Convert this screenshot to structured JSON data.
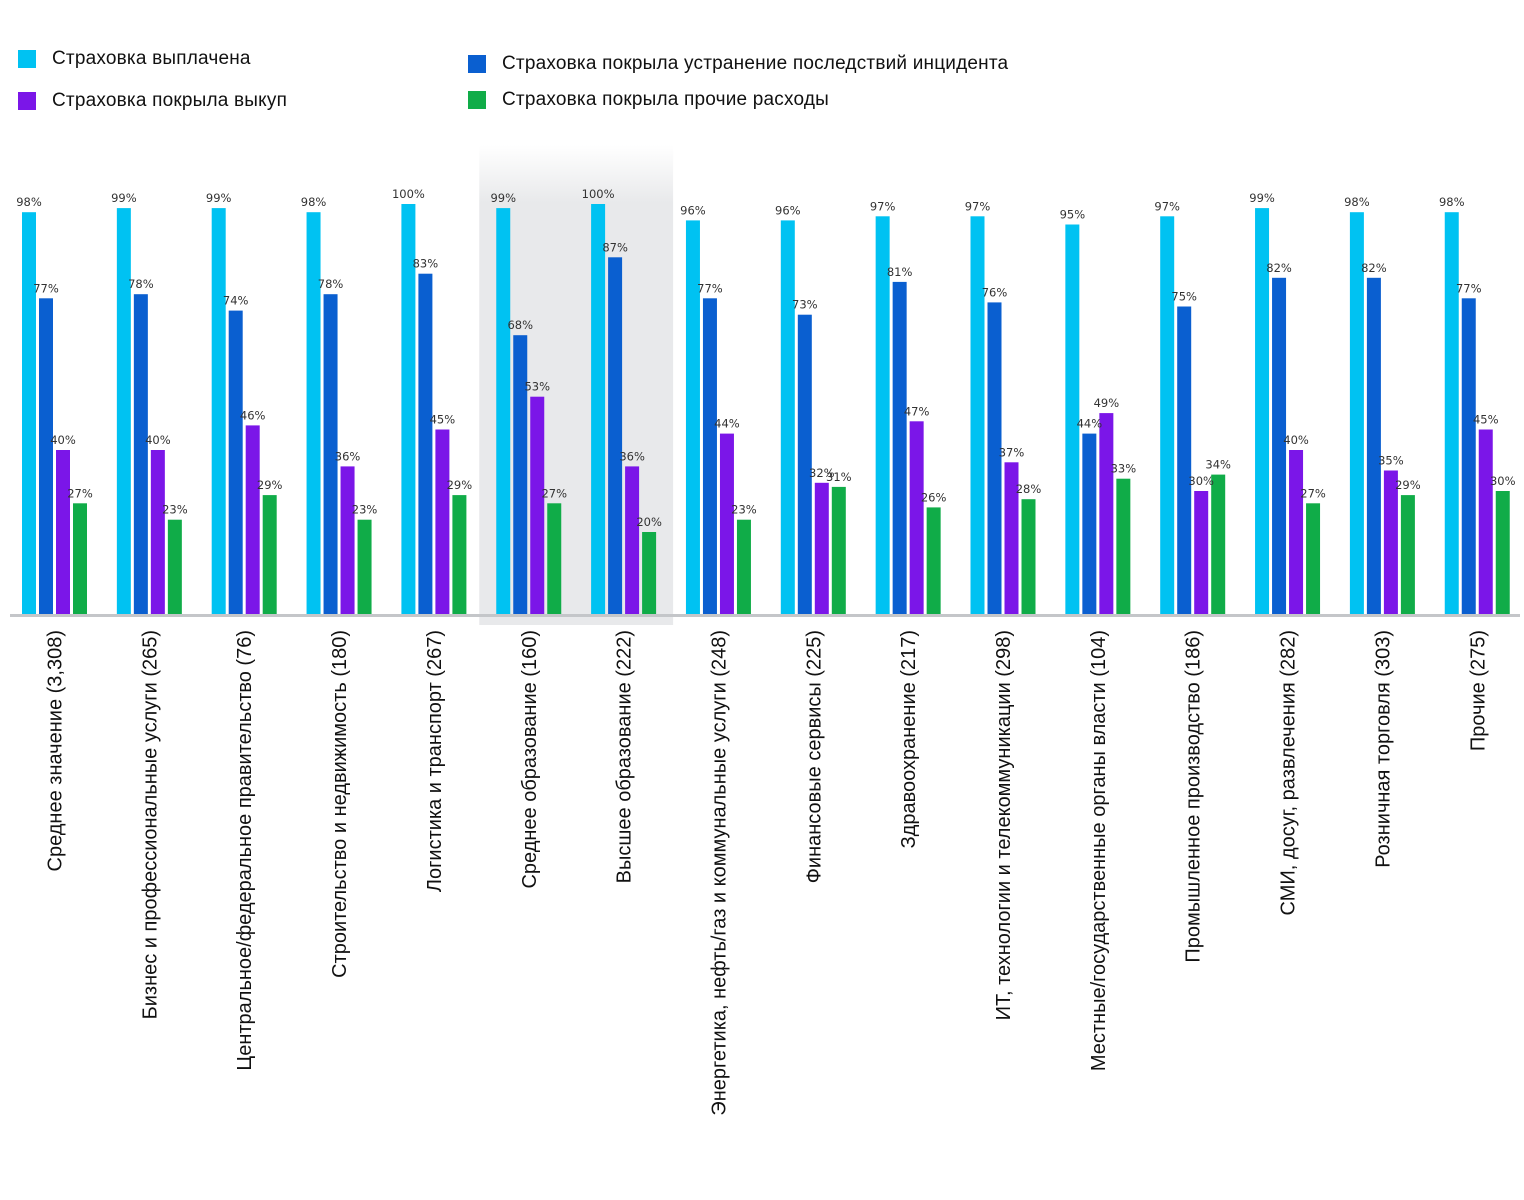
{
  "chart_data": {
    "type": "bar",
    "ylim": [
      0,
      100
    ],
    "legend_position": "top-left",
    "highlighted_categories": [
      5,
      6
    ],
    "categories": [
      "Среднее значение (3,308)",
      "Бизнес и профессиональные услуги (265)",
      "Центральное/федеральное правительство (76)",
      "Строительство и недвижимость (180)",
      "Логистика и транспорт (267)",
      "Среднее образование (160)",
      "Высшее образование (222)",
      "Энергетика, нефть/газ и коммунальные услуги (248)",
      "Финансовые сервисы (225)",
      "Здравоохранение (217)",
      "ИТ, технологии и телекоммуникации (298)",
      "Местные/государственные органы власти (104)",
      "Промышленное производство (186)",
      "СМИ, досуг, развлечения (282)",
      "Розничная торговля (303)",
      "Прочие (275)"
    ],
    "series": [
      {
        "name": "Страховка выплачена",
        "color": "#00C2F2",
        "values": [
          98,
          99,
          99,
          98,
          100,
          99,
          100,
          96,
          96,
          97,
          97,
          95,
          97,
          99,
          98,
          98
        ]
      },
      {
        "name": "Страховка покрыла устранение последствий инцидента",
        "color": "#0A5FD0",
        "values": [
          77,
          78,
          74,
          78,
          83,
          68,
          87,
          77,
          73,
          81,
          76,
          44,
          75,
          82,
          82,
          77
        ]
      },
      {
        "name": "Страховка покрыла выкуп",
        "color": "#7B16E8",
        "values": [
          40,
          40,
          46,
          36,
          45,
          53,
          36,
          44,
          32,
          47,
          37,
          49,
          30,
          40,
          35,
          45
        ]
      },
      {
        "name": "Страховка покрыла прочие расходы",
        "color": "#10AC48",
        "values": [
          27,
          23,
          29,
          23,
          29,
          27,
          20,
          23,
          31,
          26,
          28,
          33,
          34,
          27,
          29,
          30
        ]
      }
    ]
  }
}
